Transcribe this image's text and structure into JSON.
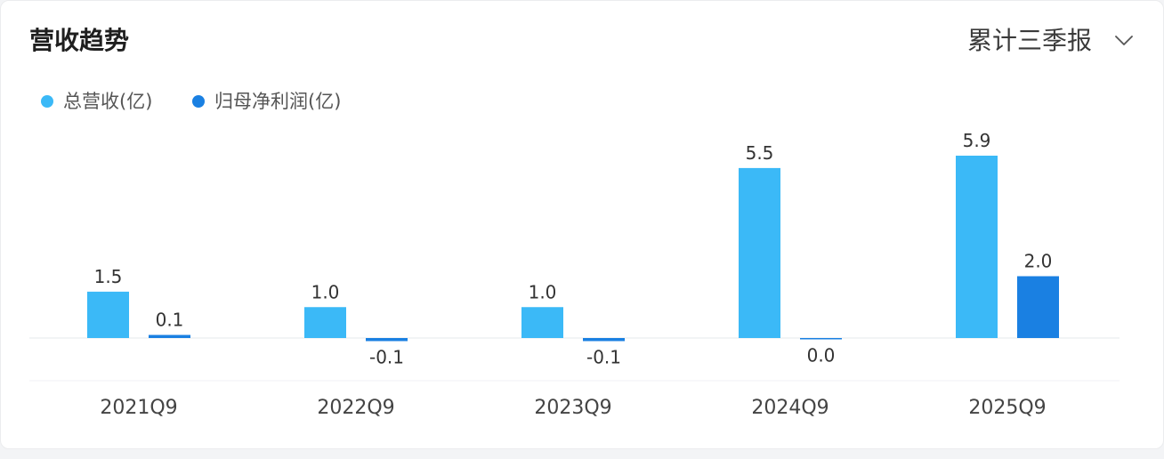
{
  "controls": {
    "period_select": {
      "value": "累计三季报",
      "icon": "chevron-down-icon"
    }
  },
  "chart_data": {
    "type": "bar",
    "title": "营收趋势",
    "categories": [
      "2021Q9",
      "2022Q9",
      "2023Q9",
      "2024Q9",
      "2025Q9"
    ],
    "series": [
      {
        "name": "总营收(亿)",
        "color": "#3bb9f7",
        "values": [
          1.5,
          1.0,
          1.0,
          5.5,
          5.9
        ]
      },
      {
        "name": "归母净利润(亿)",
        "color": "#1a80e2",
        "values": [
          0.1,
          -0.1,
          -0.1,
          0.0,
          2.0
        ]
      }
    ],
    "data_labels": true,
    "grid": false,
    "legend_position": "top-left"
  }
}
